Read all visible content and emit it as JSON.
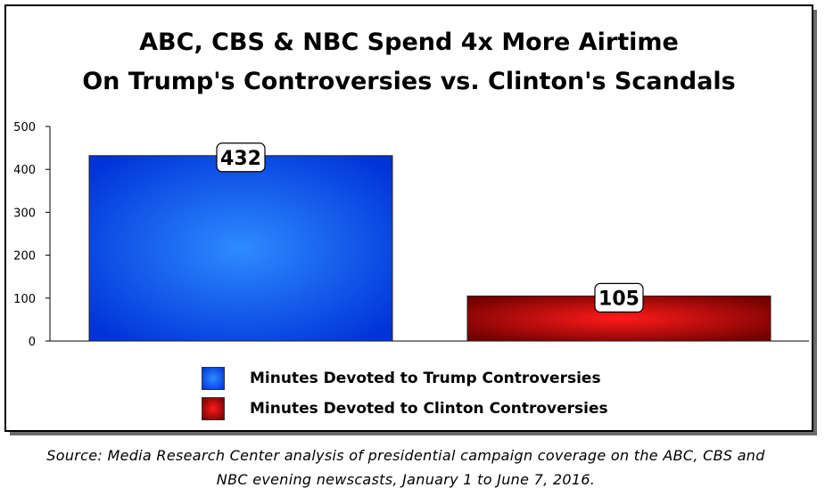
{
  "title": {
    "line1": "ABC, CBS & NBC Spend 4x More Airtime",
    "line2": "On Trump's Controversies vs. Clinton's Scandals"
  },
  "source": {
    "line1": "Source: Media Research Center analysis of presidential campaign coverage on the ABC, CBS and",
    "line2": "NBC evening newscasts, January 1 to June 7, 2016."
  },
  "legend": {
    "trump": "Minutes Devoted to Trump Controversies",
    "clinton": "Minutes Devoted to Clinton Controversies"
  },
  "colors": {
    "trump_light": "#2e8bff",
    "trump_dark": "#0033d9",
    "clinton_light": "#ff1a1a",
    "clinton_dark": "#6e0000"
  },
  "chart_data": {
    "type": "bar",
    "title": "ABC, CBS & NBC Spend 4x More Airtime On Trump's Controversies vs. Clinton's Scandals",
    "xlabel": "",
    "ylabel": "",
    "ylim": [
      0,
      500
    ],
    "yticks": [
      0,
      100,
      200,
      300,
      400,
      500
    ],
    "grid": false,
    "legend_position": "bottom",
    "categories": [
      "Minutes Devoted to Trump Controversies",
      "Minutes Devoted to Clinton Controversies"
    ],
    "values": [
      432,
      105
    ],
    "data_labels": [
      "432",
      "105"
    ]
  }
}
